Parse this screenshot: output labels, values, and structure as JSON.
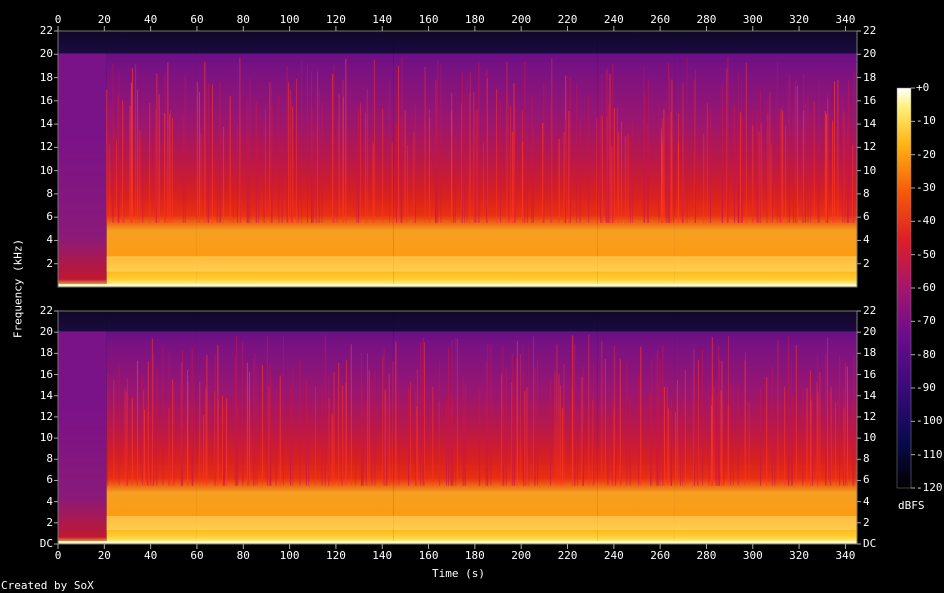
{
  "chart_data": {
    "type": "heatmap",
    "xlabel": "Time (s)",
    "ylabel": "Frequency (kHz)",
    "colorbar_label": "dBFS",
    "footer": "Created by SoX",
    "xlim": [
      0,
      345
    ],
    "ylim": [
      0,
      22
    ],
    "x_ticks": [
      "0",
      "20",
      "40",
      "60",
      "80",
      "100",
      "120",
      "140",
      "160",
      "180",
      "200",
      "220",
      "240",
      "260",
      "280",
      "300",
      "320",
      "340"
    ],
    "y_ticks_top": [
      "2",
      "4",
      "6",
      "8",
      "10",
      "12",
      "14",
      "16",
      "18",
      "20",
      "22"
    ],
    "y_ticks_bottom": [
      "DC",
      "2",
      "4",
      "6",
      "8",
      "10",
      "12",
      "14",
      "16",
      "18",
      "20",
      "22"
    ],
    "colorbar_ticks": [
      "+0",
      "-10",
      "-20",
      "-30",
      "-40",
      "-50",
      "-60",
      "-70",
      "-80",
      "-90",
      "-100",
      "-110",
      "-120"
    ],
    "colorbar_range": [
      -120,
      0
    ],
    "channels": 2,
    "segments": [
      {
        "start": 0,
        "end": 21,
        "level": 0.45
      },
      {
        "start": 21,
        "end": 60,
        "level": 0.78
      },
      {
        "start": 60,
        "end": 145,
        "level": 0.8
      },
      {
        "start": 145,
        "end": 233,
        "level": 0.82
      },
      {
        "start": 233,
        "end": 266,
        "level": 0.72
      },
      {
        "start": 266,
        "end": 345,
        "level": 0.8
      }
    ]
  }
}
